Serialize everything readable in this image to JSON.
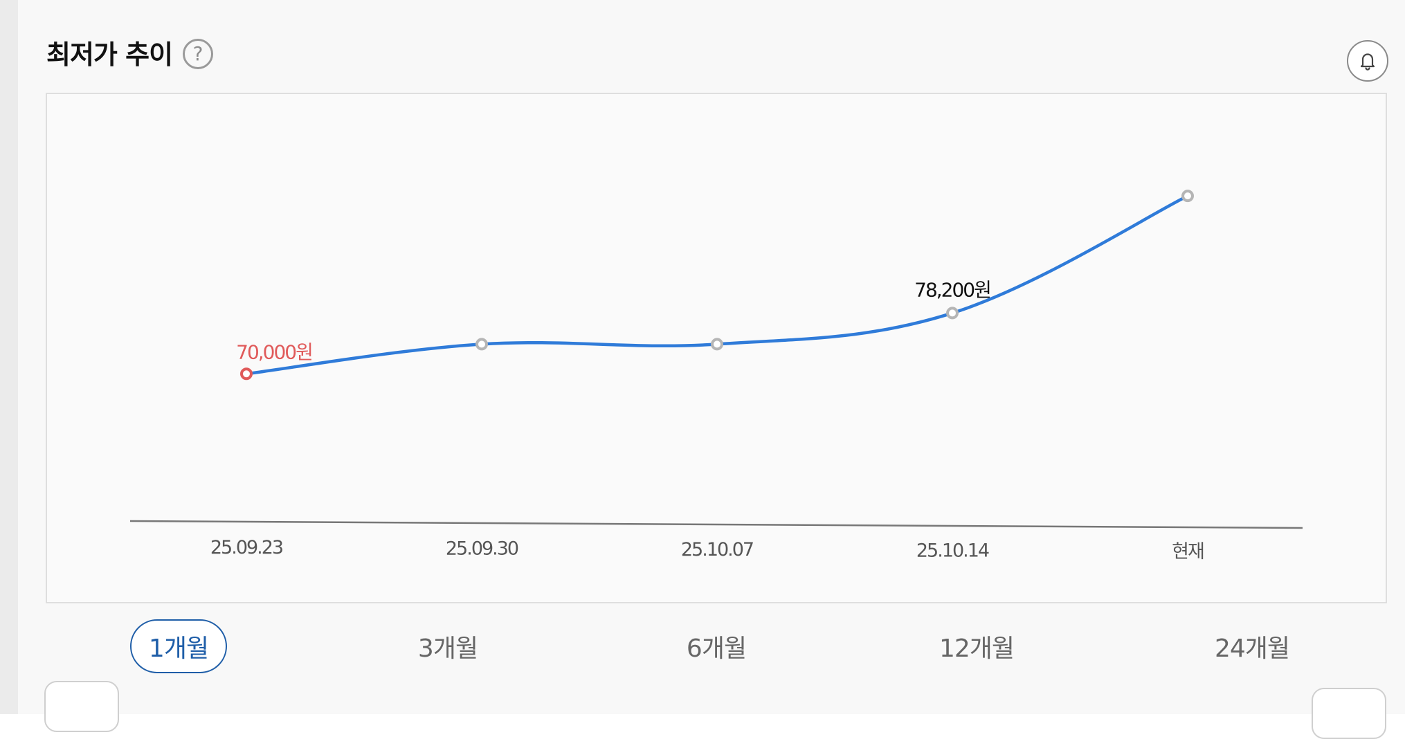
{
  "header": {
    "title": "최저가 추이",
    "help_icon": "question-circle-icon",
    "alert_icon": "bell-icon"
  },
  "chart_data": {
    "type": "line",
    "categories": [
      "25.09.23",
      "25.09.30",
      "25.10.07",
      "25.10.14",
      "현재"
    ],
    "values": [
      70000,
      74000,
      74000,
      78200,
      94000
    ],
    "point_labels": [
      "70,000원",
      "",
      "",
      "78,200원",
      ""
    ],
    "highlight": {
      "lowest_index": 0,
      "lowest_color": "#e05a5a"
    },
    "line_color": "#2f7bd9",
    "ylim": [
      48000,
      104000
    ],
    "grid": false
  },
  "range_tabs": {
    "active_index": 0,
    "labels": [
      "1개월",
      "3개월",
      "6개월",
      "12개월",
      "24개월"
    ]
  },
  "colors": {
    "accent": "#1f5ea8",
    "line": "#2f7bd9",
    "low_point": "#e05a5a"
  }
}
